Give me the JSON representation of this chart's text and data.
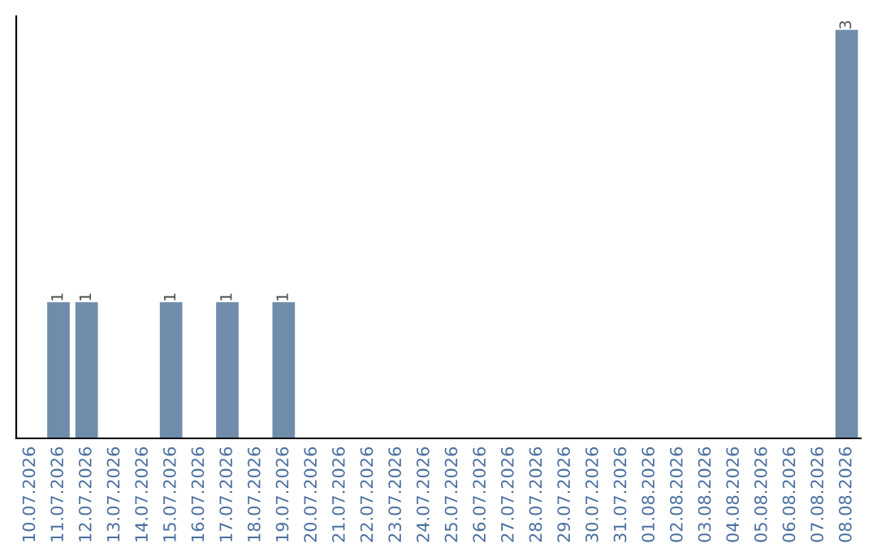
{
  "chart_data": {
    "type": "bar",
    "categories": [
      "10.07.2026",
      "11.07.2026",
      "12.07.2026",
      "13.07.2026",
      "14.07.2026",
      "15.07.2026",
      "16.07.2026",
      "17.07.2026",
      "18.07.2026",
      "19.07.2026",
      "20.07.2026",
      "21.07.2026",
      "22.07.2026",
      "23.07.2026",
      "24.07.2026",
      "25.07.2026",
      "26.07.2026",
      "27.07.2026",
      "28.07.2026",
      "29.07.2026",
      "30.07.2026",
      "31.07.2026",
      "01.08.2026",
      "02.08.2026",
      "03.08.2026",
      "04.08.2026",
      "05.08.2026",
      "06.08.2026",
      "07.08.2026",
      "08.08.2026"
    ],
    "values": [
      0,
      1,
      1,
      0,
      0,
      1,
      0,
      1,
      0,
      1,
      0,
      0,
      0,
      0,
      0,
      0,
      0,
      0,
      0,
      0,
      0,
      0,
      0,
      0,
      0,
      0,
      0,
      0,
      0,
      3
    ],
    "value_labels": [
      null,
      "1",
      "1",
      null,
      null,
      "1",
      null,
      "1",
      null,
      "1",
      null,
      null,
      null,
      null,
      null,
      null,
      null,
      null,
      null,
      null,
      null,
      null,
      null,
      null,
      null,
      null,
      null,
      null,
      null,
      "3"
    ],
    "color": "#6f8dab",
    "ylim": [
      0,
      3.1
    ],
    "tick_labels": "x",
    "grid": false,
    "legend": false
  }
}
